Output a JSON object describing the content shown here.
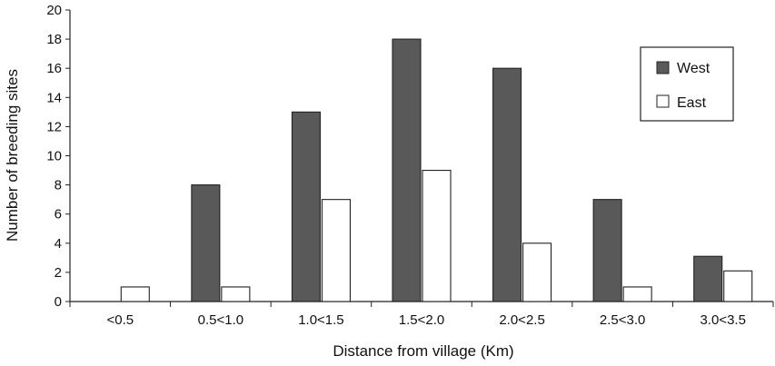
{
  "chart_data": {
    "type": "bar",
    "title": "",
    "xlabel": "Distance from village (Km)",
    "ylabel": "Number of breeding sites",
    "ylim": [
      0,
      20
    ],
    "yticks": [
      "0",
      "2",
      "4",
      "6",
      "8",
      "10",
      "12",
      "14",
      "16",
      "18",
      "20"
    ],
    "categories": [
      "<0.5",
      "0.5<1.0",
      "1.0<1.5",
      "1.5<2.0",
      "2.0<2.5",
      "2.5<3.0",
      "3.0<3.5"
    ],
    "series": [
      {
        "name": "West",
        "values": [
          0,
          8,
          13,
          18,
          16,
          7,
          3.1
        ],
        "color": "#595959"
      },
      {
        "name": "East",
        "values": [
          1,
          1,
          7,
          9,
          4,
          1,
          2.1
        ],
        "color": "#ffffff"
      }
    ],
    "grid": false,
    "legend_position": "top-right"
  }
}
